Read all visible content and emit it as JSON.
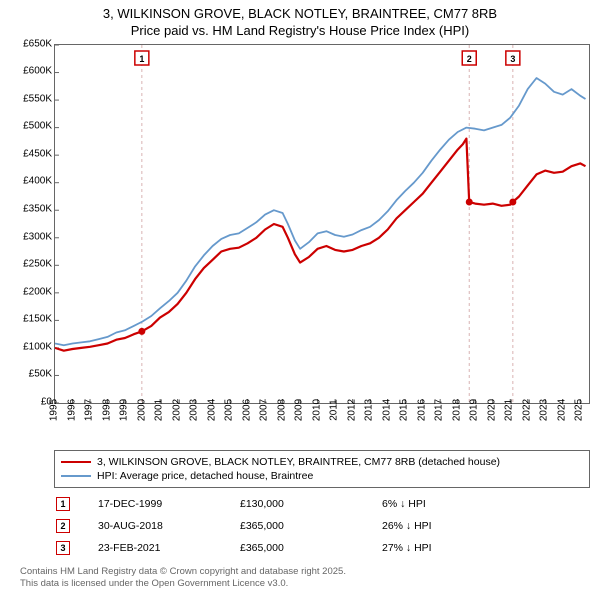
{
  "title_line1": "3, WILKINSON GROVE, BLACK NOTLEY, BRAINTREE, CM77 8RB",
  "title_line2": "Price paid vs. HM Land Registry's House Price Index (HPI)",
  "chart": {
    "type": "line",
    "background_color": "#ffffff",
    "border_color": "#666666",
    "xlim": [
      1995,
      2025.5
    ],
    "ylim": [
      0,
      650
    ],
    "x_ticks": [
      1995,
      1996,
      1997,
      1998,
      1999,
      2000,
      2001,
      2002,
      2003,
      2004,
      2005,
      2006,
      2007,
      2008,
      2009,
      2010,
      2011,
      2012,
      2013,
      2014,
      2015,
      2016,
      2017,
      2018,
      2019,
      2020,
      2021,
      2022,
      2023,
      2024,
      2025
    ],
    "y_ticks": [
      0,
      50,
      100,
      150,
      200,
      250,
      300,
      350,
      400,
      450,
      500,
      550,
      600,
      650
    ],
    "y_tick_labels": [
      "£0",
      "£50K",
      "£100K",
      "£150K",
      "£200K",
      "£250K",
      "£300K",
      "£350K",
      "£400K",
      "£450K",
      "£500K",
      "£550K",
      "£600K",
      "£650K"
    ],
    "tick_fontsize": 10,
    "red_series": {
      "color": "#cc0000",
      "width": 2.2,
      "points": [
        [
          1995,
          100
        ],
        [
          1995.5,
          95
        ],
        [
          1996,
          98
        ],
        [
          1996.5,
          100
        ],
        [
          1997,
          102
        ],
        [
          1997.5,
          105
        ],
        [
          1998,
          108
        ],
        [
          1998.5,
          115
        ],
        [
          1999,
          118
        ],
        [
          1999.5,
          125
        ],
        [
          1999.96,
          130
        ],
        [
          2000.5,
          140
        ],
        [
          2001,
          155
        ],
        [
          2001.5,
          165
        ],
        [
          2002,
          180
        ],
        [
          2002.5,
          200
        ],
        [
          2003,
          225
        ],
        [
          2003.5,
          245
        ],
        [
          2004,
          260
        ],
        [
          2004.5,
          275
        ],
        [
          2005,
          280
        ],
        [
          2005.5,
          282
        ],
        [
          2006,
          290
        ],
        [
          2006.5,
          300
        ],
        [
          2007,
          315
        ],
        [
          2007.5,
          325
        ],
        [
          2008,
          320
        ],
        [
          2008.3,
          300
        ],
        [
          2008.7,
          270
        ],
        [
          2009,
          255
        ],
        [
          2009.5,
          265
        ],
        [
          2010,
          280
        ],
        [
          2010.5,
          285
        ],
        [
          2011,
          278
        ],
        [
          2011.5,
          275
        ],
        [
          2012,
          278
        ],
        [
          2012.5,
          285
        ],
        [
          2013,
          290
        ],
        [
          2013.5,
          300
        ],
        [
          2014,
          315
        ],
        [
          2014.5,
          335
        ],
        [
          2015,
          350
        ],
        [
          2015.5,
          365
        ],
        [
          2016,
          380
        ],
        [
          2016.5,
          400
        ],
        [
          2017,
          420
        ],
        [
          2017.5,
          440
        ],
        [
          2018,
          460
        ],
        [
          2018.3,
          470
        ],
        [
          2018.5,
          480
        ],
        [
          2018.66,
          365
        ],
        [
          2019,
          362
        ],
        [
          2019.5,
          360
        ],
        [
          2020,
          362
        ],
        [
          2020.5,
          358
        ],
        [
          2021,
          360
        ],
        [
          2021.15,
          365
        ],
        [
          2021.5,
          375
        ],
        [
          2022,
          395
        ],
        [
          2022.5,
          415
        ],
        [
          2023,
          422
        ],
        [
          2023.5,
          418
        ],
        [
          2024,
          420
        ],
        [
          2024.5,
          430
        ],
        [
          2025,
          435
        ],
        [
          2025.3,
          430
        ]
      ]
    },
    "blue_series": {
      "color": "#6699cc",
      "width": 1.8,
      "points": [
        [
          1995,
          108
        ],
        [
          1995.5,
          105
        ],
        [
          1996,
          108
        ],
        [
          1996.5,
          110
        ],
        [
          1997,
          112
        ],
        [
          1997.5,
          116
        ],
        [
          1998,
          120
        ],
        [
          1998.5,
          128
        ],
        [
          1999,
          132
        ],
        [
          1999.5,
          140
        ],
        [
          2000,
          148
        ],
        [
          2000.5,
          158
        ],
        [
          2001,
          172
        ],
        [
          2001.5,
          185
        ],
        [
          2002,
          200
        ],
        [
          2002.5,
          222
        ],
        [
          2003,
          248
        ],
        [
          2003.5,
          268
        ],
        [
          2004,
          285
        ],
        [
          2004.5,
          298
        ],
        [
          2005,
          305
        ],
        [
          2005.5,
          308
        ],
        [
          2006,
          318
        ],
        [
          2006.5,
          328
        ],
        [
          2007,
          342
        ],
        [
          2007.5,
          350
        ],
        [
          2008,
          345
        ],
        [
          2008.3,
          325
        ],
        [
          2008.7,
          295
        ],
        [
          2009,
          280
        ],
        [
          2009.5,
          292
        ],
        [
          2010,
          308
        ],
        [
          2010.5,
          312
        ],
        [
          2011,
          305
        ],
        [
          2011.5,
          302
        ],
        [
          2012,
          306
        ],
        [
          2012.5,
          314
        ],
        [
          2013,
          320
        ],
        [
          2013.5,
          332
        ],
        [
          2014,
          348
        ],
        [
          2014.5,
          368
        ],
        [
          2015,
          385
        ],
        [
          2015.5,
          400
        ],
        [
          2016,
          418
        ],
        [
          2016.5,
          440
        ],
        [
          2017,
          460
        ],
        [
          2017.5,
          478
        ],
        [
          2018,
          492
        ],
        [
          2018.5,
          500
        ],
        [
          2019,
          498
        ],
        [
          2019.5,
          495
        ],
        [
          2020,
          500
        ],
        [
          2020.5,
          505
        ],
        [
          2021,
          518
        ],
        [
          2021.5,
          540
        ],
        [
          2022,
          570
        ],
        [
          2022.5,
          590
        ],
        [
          2023,
          580
        ],
        [
          2023.5,
          565
        ],
        [
          2024,
          560
        ],
        [
          2024.5,
          570
        ],
        [
          2025,
          558
        ],
        [
          2025.3,
          552
        ]
      ]
    },
    "sale_markers": [
      {
        "n": 1,
        "x": 1999.96,
        "y": 130,
        "line_color": "#d9b3b3",
        "box_color": "#cc0000"
      },
      {
        "n": 2,
        "x": 2018.66,
        "y": 365,
        "line_color": "#d9b3b3",
        "box_color": "#cc0000"
      },
      {
        "n": 3,
        "x": 2021.15,
        "y": 365,
        "line_color": "#d9b3b3",
        "box_color": "#cc0000"
      }
    ],
    "marker_dot_color": "#cc0000"
  },
  "legend": {
    "items": [
      {
        "color": "#cc0000",
        "label": "3, WILKINSON GROVE, BLACK NOTLEY, BRAINTREE, CM77 8RB (detached house)"
      },
      {
        "color": "#6699cc",
        "label": "HPI: Average price, detached house, Braintree"
      }
    ]
  },
  "sales": [
    {
      "n": "1",
      "box_color": "#cc0000",
      "date": "17-DEC-1999",
      "price": "£130,000",
      "diff": "6% ↓ HPI"
    },
    {
      "n": "2",
      "box_color": "#cc0000",
      "date": "30-AUG-2018",
      "price": "£365,000",
      "diff": "26% ↓ HPI"
    },
    {
      "n": "3",
      "box_color": "#cc0000",
      "date": "23-FEB-2021",
      "price": "£365,000",
      "diff": "27% ↓ HPI"
    }
  ],
  "footer_line1": "Contains HM Land Registry data © Crown copyright and database right 2025.",
  "footer_line2": "This data is licensed under the Open Government Licence v3.0."
}
